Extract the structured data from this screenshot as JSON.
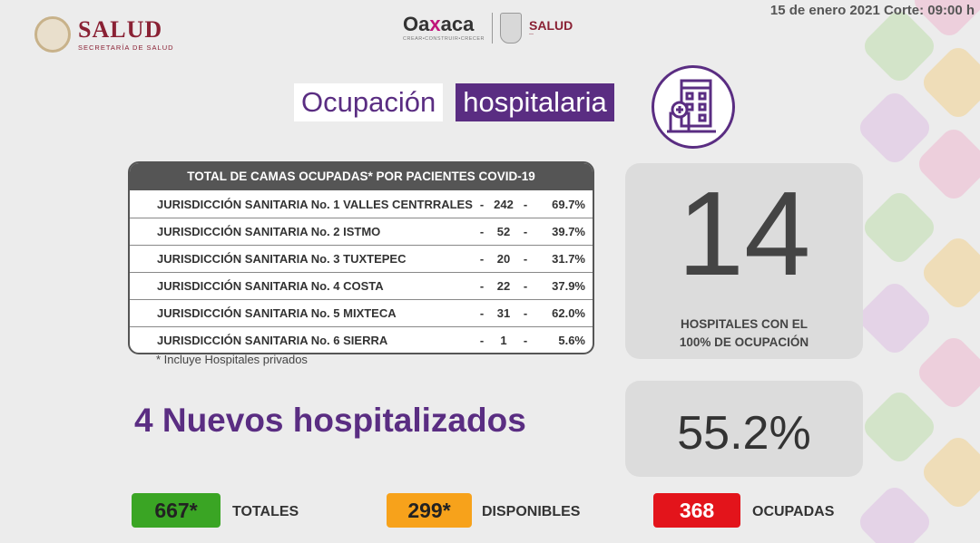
{
  "header": {
    "date_line": "15 de enero 2021 Corte: 09:00 h",
    "salud_logo": {
      "title": "SALUD",
      "subtitle": "SECRETARÍA DE SALUD"
    },
    "oaxaca_logo": {
      "title_left": "Oa",
      "title_x": "x",
      "title_right": "aca",
      "tagline": "CREAR•CONSTRUIR•CRECER",
      "salud": "SALUD"
    }
  },
  "title": {
    "part1": "Ocupación",
    "part2": "hospitalaria",
    "icon": "hospital-building-icon"
  },
  "table": {
    "header": "TOTAL DE CAMAS OCUPADAS* POR PACIENTES COVID-19",
    "rows": [
      {
        "name": "JURISDICCIÓN SANITARIA No. 1  VALLES CENTRRALES",
        "value": "242",
        "percent": "69.7%"
      },
      {
        "name": "JURISDICCIÓN SANITARIA No. 2  ISTMO",
        "value": "52",
        "percent": "39.7%"
      },
      {
        "name": "JURISDICCIÓN SANITARIA No. 3 TUXTEPEC",
        "value": "20",
        "percent": "31.7%"
      },
      {
        "name": "JURISDICCIÓN SANITARIA No. 4 COSTA",
        "value": "22",
        "percent": "37.9%"
      },
      {
        "name": "JURISDICCIÓN SANITARIA No. 5 MIXTECA",
        "value": "31",
        "percent": "62.0%"
      },
      {
        "name": "JURISDICCIÓN SANITARIA No. 6 SIERRA",
        "value": "1",
        "percent": "5.6%"
      }
    ],
    "separator": "-",
    "footnote": "* Incluye Hospitales privados"
  },
  "hospitals_full": {
    "count": "14",
    "label_line1": "HOSPITALES CON EL",
    "label_line2": "100% DE OCUPACIÓN"
  },
  "occupancy_percent": "55.2%",
  "nuevos": "4  Nuevos hospitalizados",
  "badges": [
    {
      "value": "667*",
      "label": "TOTALES",
      "color": "#3aa524"
    },
    {
      "value": "299*",
      "label": "DISPONIBLES",
      "color": "#f7a21b"
    },
    {
      "value": "368",
      "label": "OCUPADAS",
      "color": "#e3141b"
    }
  ],
  "colors": {
    "purple": "#5a2d82",
    "maroon": "#8a2134"
  }
}
